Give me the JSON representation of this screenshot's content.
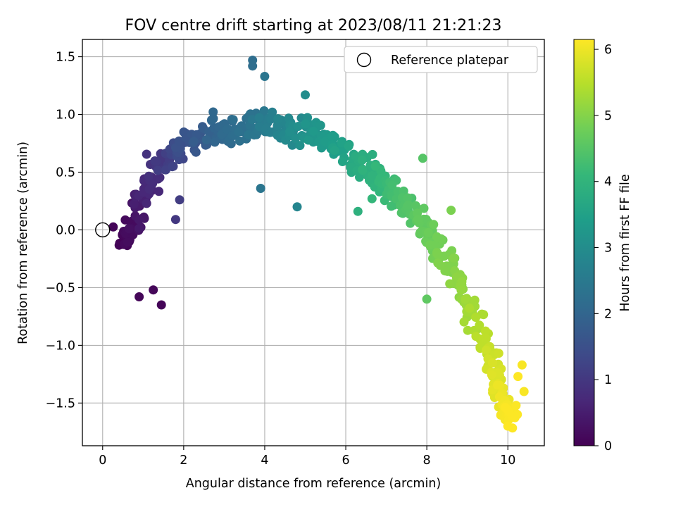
{
  "chart_data": {
    "type": "scatter",
    "title": "FOV centre drift starting at 2023/08/11 21:21:23",
    "xlabel": "Angular distance from reference (arcmin)",
    "ylabel": "Rotation from reference (arcmin)",
    "xlim": [
      -0.5,
      10.9
    ],
    "ylim": [
      -1.87,
      1.65
    ],
    "xticks": [
      0,
      2,
      4,
      6,
      8,
      10
    ],
    "yticks": [
      -1.5,
      -1.0,
      -0.5,
      0.0,
      0.5,
      1.0,
      1.5
    ],
    "xtick_labels": [
      "0",
      "2",
      "4",
      "6",
      "8",
      "10"
    ],
    "ytick_labels": [
      "−1.5",
      "−1.0",
      "−0.5",
      "0.0",
      "0.5",
      "1.0",
      "1.5"
    ],
    "grid": true,
    "legend": {
      "placement": "top-right",
      "entries": [
        {
          "label": "Reference platepar",
          "marker": "open-circle"
        }
      ]
    },
    "reference_point": {
      "x": 0,
      "y": 0
    },
    "colorbar": {
      "label": "Hours from first FF file",
      "min": 0,
      "max": 6.15,
      "ticks": [
        0,
        1,
        2,
        3,
        4,
        5,
        6
      ],
      "colormap": "viridis"
    },
    "trend_anchors": [
      {
        "x": 0.5,
        "y": -0.1,
        "hours": 0.0
      },
      {
        "x": 0.9,
        "y": 0.15,
        "hours": 0.4
      },
      {
        "x": 1.3,
        "y": 0.55,
        "hours": 0.9
      },
      {
        "x": 2.0,
        "y": 0.75,
        "hours": 1.5
      },
      {
        "x": 2.8,
        "y": 0.85,
        "hours": 2.0
      },
      {
        "x": 3.6,
        "y": 0.92,
        "hours": 2.3
      },
      {
        "x": 4.3,
        "y": 0.9,
        "hours": 2.7
      },
      {
        "x": 5.0,
        "y": 0.85,
        "hours": 3.1
      },
      {
        "x": 5.7,
        "y": 0.75,
        "hours": 3.4
      },
      {
        "x": 6.4,
        "y": 0.55,
        "hours": 3.8
      },
      {
        "x": 7.1,
        "y": 0.35,
        "hours": 4.2
      },
      {
        "x": 7.8,
        "y": 0.1,
        "hours": 4.6
      },
      {
        "x": 8.4,
        "y": -0.25,
        "hours": 4.9
      },
      {
        "x": 9.0,
        "y": -0.6,
        "hours": 5.2
      },
      {
        "x": 9.5,
        "y": -1.05,
        "hours": 5.6
      },
      {
        "x": 9.9,
        "y": -1.45,
        "hours": 6.0
      },
      {
        "x": 10.1,
        "y": -1.6,
        "hours": 6.15
      }
    ],
    "highlighted_points": [
      {
        "x": 3.7,
        "y": 1.47,
        "hours": 2.2
      },
      {
        "x": 3.7,
        "y": 1.42,
        "hours": 2.2
      },
      {
        "x": 4.0,
        "y": 1.33,
        "hours": 2.4
      },
      {
        "x": 5.0,
        "y": 1.17,
        "hours": 3.0
      },
      {
        "x": 0.9,
        "y": -0.58,
        "hours": 0.1
      },
      {
        "x": 1.25,
        "y": -0.52,
        "hours": 0.1
      },
      {
        "x": 1.45,
        "y": -0.65,
        "hours": 0.05
      },
      {
        "x": 1.8,
        "y": 0.09,
        "hours": 1.0
      },
      {
        "x": 1.9,
        "y": 0.26,
        "hours": 1.1
      },
      {
        "x": 3.9,
        "y": 0.36,
        "hours": 2.4
      },
      {
        "x": 4.8,
        "y": 0.2,
        "hours": 2.8
      },
      {
        "x": 6.3,
        "y": 0.16,
        "hours": 3.9
      },
      {
        "x": 8.6,
        "y": 0.17,
        "hours": 4.9
      },
      {
        "x": 7.9,
        "y": 0.62,
        "hours": 4.5
      },
      {
        "x": 8.0,
        "y": -0.6,
        "hours": 4.6
      },
      {
        "x": 10.4,
        "y": -1.4,
        "hours": 6.1
      },
      {
        "x": 10.35,
        "y": -1.17,
        "hours": 6.1
      },
      {
        "x": 10.0,
        "y": -1.7,
        "hours": 6.15
      },
      {
        "x": 10.25,
        "y": -1.27,
        "hours": 6.15
      }
    ]
  }
}
